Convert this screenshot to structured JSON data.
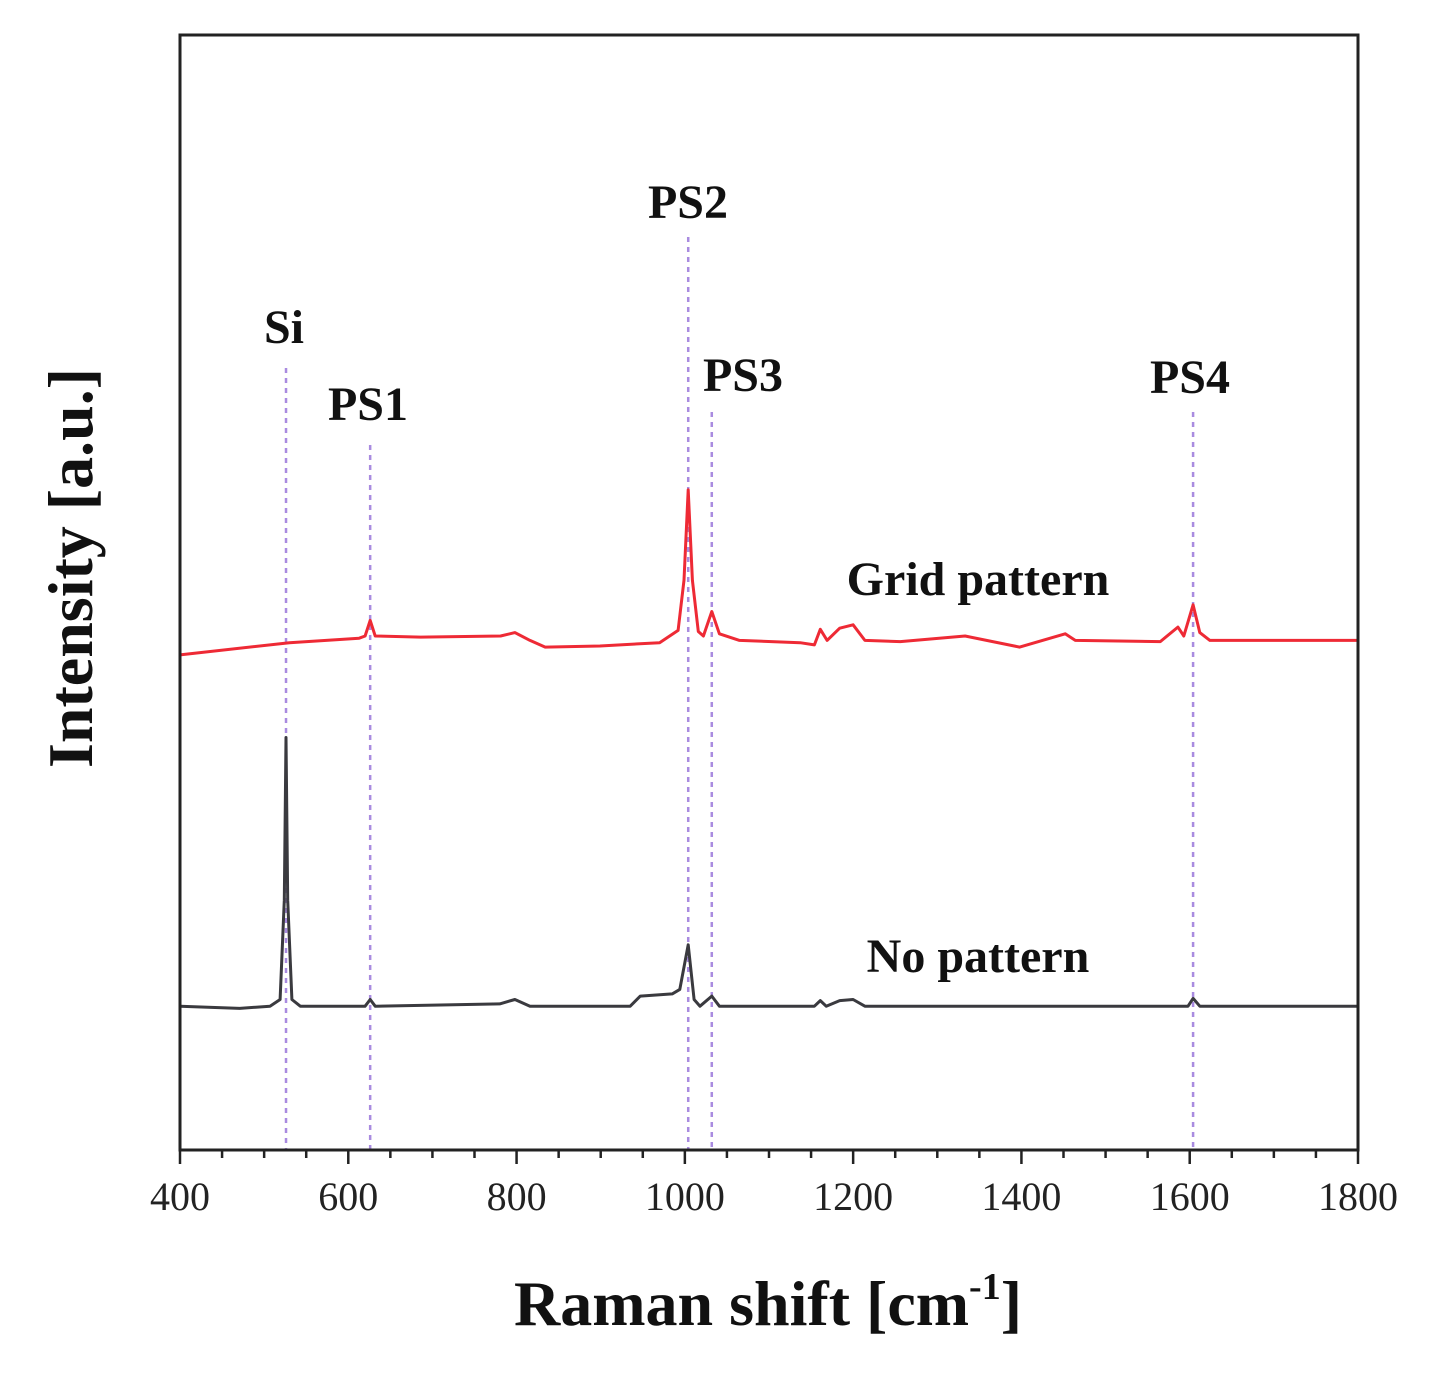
{
  "chart_data": {
    "type": "line",
    "title": "",
    "xlabel": "Raman shift [cm",
    "xlabel_superscript": "-1",
    "xlabel_suffix": "]",
    "ylabel": "Intensity [a.u.]",
    "xlim": [
      400,
      1800
    ],
    "ylim": [
      0,
      100
    ],
    "x_ticks": [
      400,
      600,
      800,
      1000,
      1200,
      1400,
      1600,
      1800
    ],
    "y_ticks_shown": false,
    "grid": false,
    "legend": "none",
    "series": [
      {
        "name": "Grid pattern",
        "color": "#ee2a35",
        "points": [
          [
            400,
            44.4
          ],
          [
            530,
            45.5
          ],
          [
            613,
            45.9
          ],
          [
            620,
            46.1
          ],
          [
            626,
            47.5
          ],
          [
            632,
            46.1
          ],
          [
            686,
            46.0
          ],
          [
            781,
            46.1
          ],
          [
            798,
            46.4
          ],
          [
            816,
            45.7
          ],
          [
            834,
            45.1
          ],
          [
            899,
            45.2
          ],
          [
            970,
            45.5
          ],
          [
            992,
            46.6
          ],
          [
            999,
            51.1
          ],
          [
            1004,
            59.2
          ],
          [
            1009,
            51.1
          ],
          [
            1016,
            46.5
          ],
          [
            1022,
            46.1
          ],
          [
            1032,
            48.3
          ],
          [
            1041,
            46.3
          ],
          [
            1065,
            45.7
          ],
          [
            1137,
            45.5
          ],
          [
            1154,
            45.3
          ],
          [
            1161,
            46.7
          ],
          [
            1169,
            45.7
          ],
          [
            1184,
            46.8
          ],
          [
            1200,
            47.1
          ],
          [
            1214,
            45.7
          ],
          [
            1256,
            45.6
          ],
          [
            1333,
            46.1
          ],
          [
            1398,
            45.1
          ],
          [
            1452,
            46.3
          ],
          [
            1464,
            45.7
          ],
          [
            1565,
            45.6
          ],
          [
            1586,
            46.9
          ],
          [
            1593,
            46.1
          ],
          [
            1604,
            48.9
          ],
          [
            1612,
            46.4
          ],
          [
            1624,
            45.7
          ],
          [
            1800,
            45.7
          ]
        ]
      },
      {
        "name": "No pattern",
        "color": "#3a3a3f",
        "points": [
          [
            400,
            12.9
          ],
          [
            471,
            12.7
          ],
          [
            507,
            12.9
          ],
          [
            519,
            13.5
          ],
          [
            524,
            22.4
          ],
          [
            526,
            37.0
          ],
          [
            528,
            22.4
          ],
          [
            533,
            13.5
          ],
          [
            543,
            12.9
          ],
          [
            620,
            12.9
          ],
          [
            626,
            13.5
          ],
          [
            632,
            12.9
          ],
          [
            780,
            13.1
          ],
          [
            798,
            13.5
          ],
          [
            816,
            12.9
          ],
          [
            935,
            12.9
          ],
          [
            947,
            13.8
          ],
          [
            985,
            14.0
          ],
          [
            994,
            14.4
          ],
          [
            1004,
            18.4
          ],
          [
            1011,
            13.5
          ],
          [
            1018,
            12.9
          ],
          [
            1032,
            13.8
          ],
          [
            1041,
            12.9
          ],
          [
            1154,
            12.9
          ],
          [
            1161,
            13.4
          ],
          [
            1168,
            12.9
          ],
          [
            1184,
            13.4
          ],
          [
            1200,
            13.5
          ],
          [
            1214,
            12.9
          ],
          [
            1598,
            12.9
          ],
          [
            1604,
            13.6
          ],
          [
            1612,
            12.9
          ],
          [
            1800,
            12.9
          ]
        ]
      }
    ],
    "peak_markers": {
      "color": "#a98be0",
      "peaks": [
        {
          "label": "Si",
          "x": 526
        },
        {
          "label": "PS1",
          "x": 626
        },
        {
          "label": "PS2",
          "x": 1004
        },
        {
          "label": "PS3",
          "x": 1032
        },
        {
          "label": "PS4",
          "x": 1604
        }
      ]
    }
  }
}
